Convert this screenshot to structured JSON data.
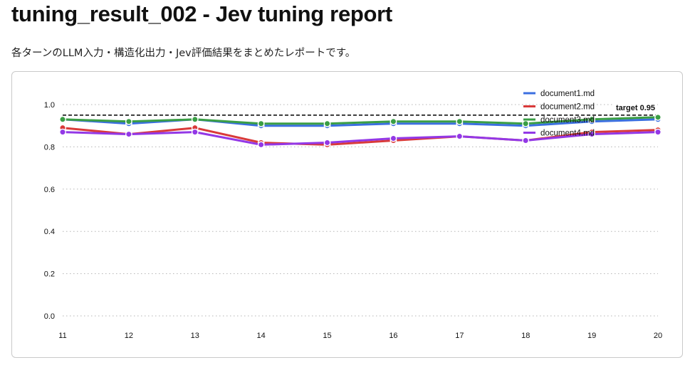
{
  "page": {
    "title": "tuning_result_002 - Jev tuning report",
    "subtitle": "各ターンのLLM入力・構造化出力・Jev評価結果をまとめたレポートです。"
  },
  "chart_data": {
    "type": "line",
    "title": "",
    "xlabel": "",
    "ylabel": "",
    "x": [
      11,
      12,
      13,
      14,
      15,
      16,
      17,
      18,
      19,
      20
    ],
    "ylim": [
      0,
      1.1
    ],
    "yticks": [
      0.0,
      0.2,
      0.4,
      0.6,
      0.8,
      1.0
    ],
    "ytick_labels": [
      "0.0",
      "0.2",
      "0.4",
      "0.6",
      "0.8",
      "1.0"
    ],
    "xtick_labels": [
      "11",
      "12",
      "13",
      "14",
      "15",
      "16",
      "17",
      "18",
      "19",
      "20"
    ],
    "grid": "horizontal-dotted",
    "legend_position": "top-right",
    "series": [
      {
        "name": "document1.md",
        "color": "#3b6fe0",
        "values": [
          0.93,
          0.91,
          0.93,
          0.9,
          0.9,
          0.91,
          0.91,
          0.9,
          0.92,
          0.93
        ]
      },
      {
        "name": "document2.md",
        "color": "#d93a3a",
        "values": [
          0.89,
          0.86,
          0.89,
          0.82,
          0.81,
          0.83,
          0.85,
          0.83,
          0.87,
          0.88
        ]
      },
      {
        "name": "document3.md",
        "color": "#3a9e45",
        "values": [
          0.93,
          0.92,
          0.93,
          0.91,
          0.91,
          0.92,
          0.92,
          0.91,
          0.93,
          0.94
        ]
      },
      {
        "name": "document4.md",
        "color": "#9338e6",
        "values": [
          0.87,
          0.86,
          0.87,
          0.81,
          0.82,
          0.84,
          0.85,
          0.83,
          0.86,
          0.87
        ]
      }
    ],
    "target": {
      "value": 0.95,
      "label": "target 0.95",
      "color": "#111111"
    }
  }
}
